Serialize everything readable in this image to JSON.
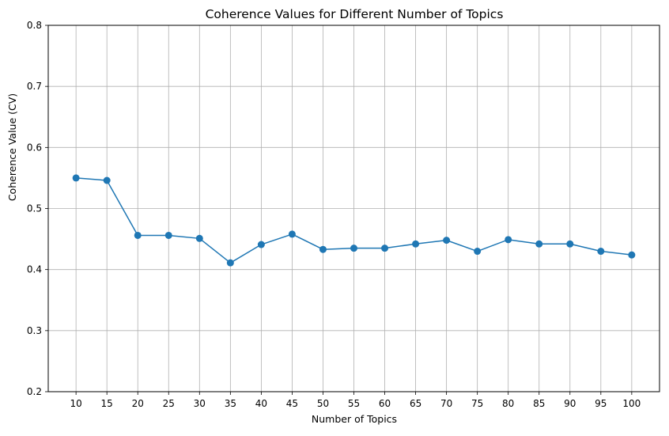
{
  "chart_data": {
    "type": "line",
    "title": "Coherence Values for Different Number of Topics",
    "xlabel": "Number of Topics",
    "ylabel": "Coherence Value (CV)",
    "x": [
      10,
      15,
      20,
      25,
      30,
      35,
      40,
      45,
      50,
      55,
      60,
      65,
      70,
      75,
      80,
      85,
      90,
      95,
      100
    ],
    "series": [
      {
        "values": [
          0.55,
          0.546,
          0.456,
          0.456,
          0.451,
          0.411,
          0.441,
          0.458,
          0.433,
          0.435,
          0.435,
          0.442,
          0.448,
          0.43,
          0.449,
          0.442,
          0.442,
          0.43,
          0.424
        ],
        "color": "#1f77b4",
        "marker": "circle"
      }
    ],
    "x_ticks": [
      "10",
      "15",
      "20",
      "25",
      "30",
      "35",
      "40",
      "45",
      "50",
      "55",
      "60",
      "65",
      "70",
      "75",
      "80",
      "85",
      "90",
      "95",
      "100"
    ],
    "y_ticks": [
      "0.2",
      "0.3",
      "0.4",
      "0.5",
      "0.6",
      "0.7",
      "0.8"
    ],
    "ylim": [
      0.2,
      0.8
    ],
    "xlim": [
      5.5,
      104.5
    ],
    "grid": true,
    "legend": false
  }
}
